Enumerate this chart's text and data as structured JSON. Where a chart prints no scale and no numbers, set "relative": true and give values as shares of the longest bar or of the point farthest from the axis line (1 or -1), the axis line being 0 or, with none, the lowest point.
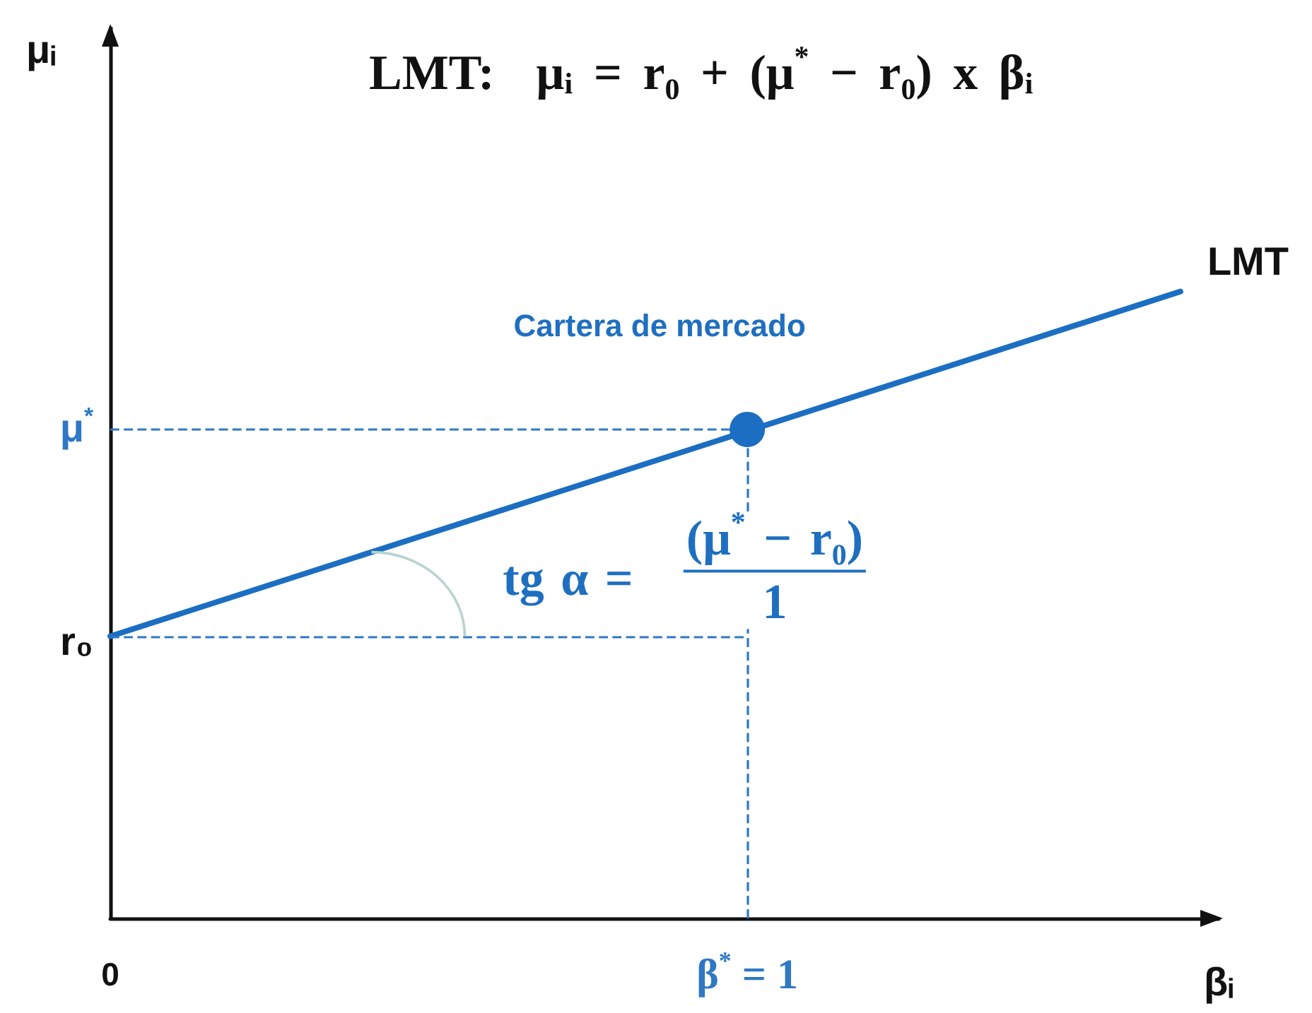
{
  "chart_data": {
    "type": "line",
    "title": "LMT:  μᵢ = r₀ + (μ$^{*}$ − r₀) x βᵢ",
    "xlabel": "βᵢ",
    "relative": true,
    "xlim": [
      0,
      1.74
    ],
    "xticks": [
      0,
      {
        "value": 1,
        "label": "β$^{*}$ = 1"
      }
    ],
    "series": [
      {
        "name": "LMT",
        "color": "#1b6ec2",
        "x": [
          0,
          1.68
        ],
        "values": [
          0.45,
          1
        ]
      },
      {
        "type": "scatter",
        "color": "#1b6ec2",
        "x": [
          1
        ],
        "values": [
          0.78
        ],
        "marker": "circle"
      }
    ],
    "ref_lines": [
      {
        "axis": "y",
        "value": 0.78,
        "label": "μ$^{*}$",
        "line_style": "dashed",
        "color": "#2e78c4"
      },
      {
        "axis": "y",
        "value": 0.45,
        "label": "r₀",
        "line_style": "dashed",
        "color": "#2e78c4"
      },
      {
        "axis": "x",
        "value": 1,
        "line_style": "dashed",
        "color": "#2e78c4"
      }
    ],
    "annotations": [
      "μᵢ",
      {
        "text": "Cartera de mercado",
        "x": 1,
        "y": 0.78
      },
      {
        "text": "tg α =",
        "x": 0.41,
        "y": 0.58
      },
      "(μ$^{*}$ − r₀)",
      "1"
    ]
  }
}
